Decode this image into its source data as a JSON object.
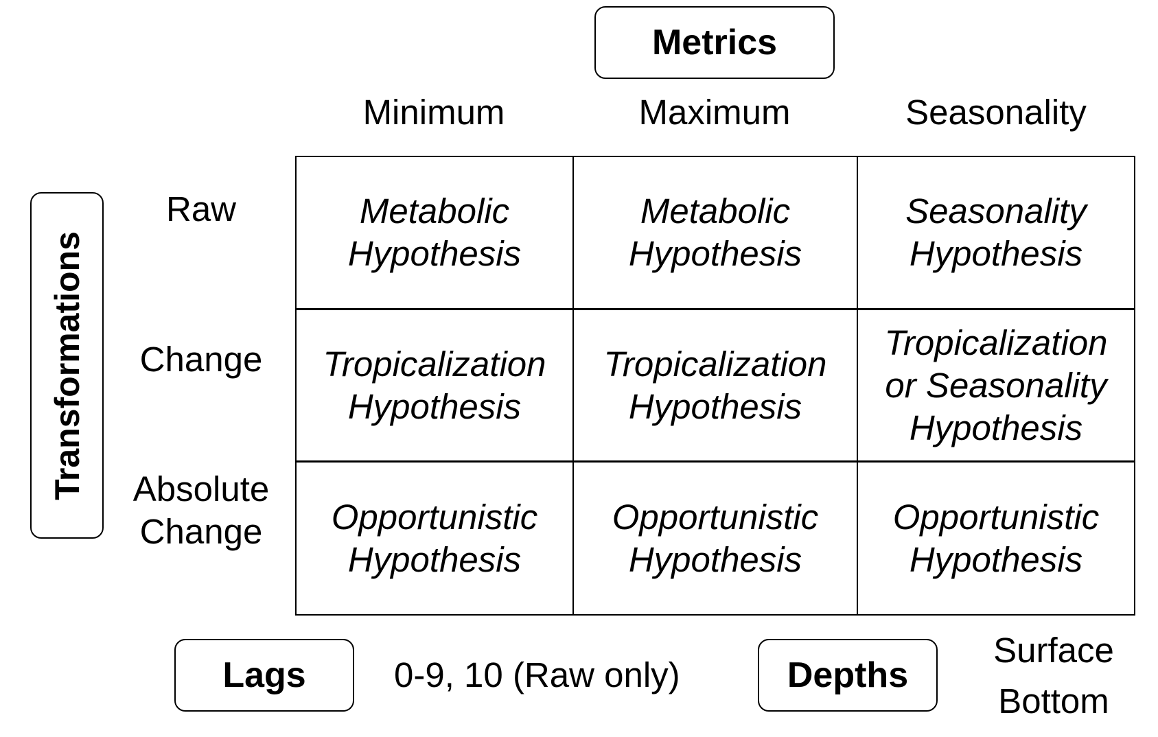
{
  "metrics": {
    "title": "Metrics",
    "columns": [
      "Minimum",
      "Maximum",
      "Seasonality"
    ]
  },
  "transformations": {
    "title": "Transformations",
    "rows": [
      "Raw",
      "Change",
      "Absolute\nChange"
    ]
  },
  "cells": [
    [
      "Metabolic\nHypothesis",
      "Metabolic\nHypothesis",
      "Seasonality\nHypothesis"
    ],
    [
      "Tropicalization\nHypothesis",
      "Tropicalization\nHypothesis",
      "Tropicalization\nor Seasonality\nHypothesis"
    ],
    [
      "Opportunistic\nHypothesis",
      "Opportunistic\nHypothesis",
      "Opportunistic\nHypothesis"
    ]
  ],
  "lags": {
    "title": "Lags",
    "value": "0-9, 10 (Raw only)"
  },
  "depths": {
    "title": "Depths",
    "values": [
      "Surface",
      "Bottom"
    ]
  }
}
